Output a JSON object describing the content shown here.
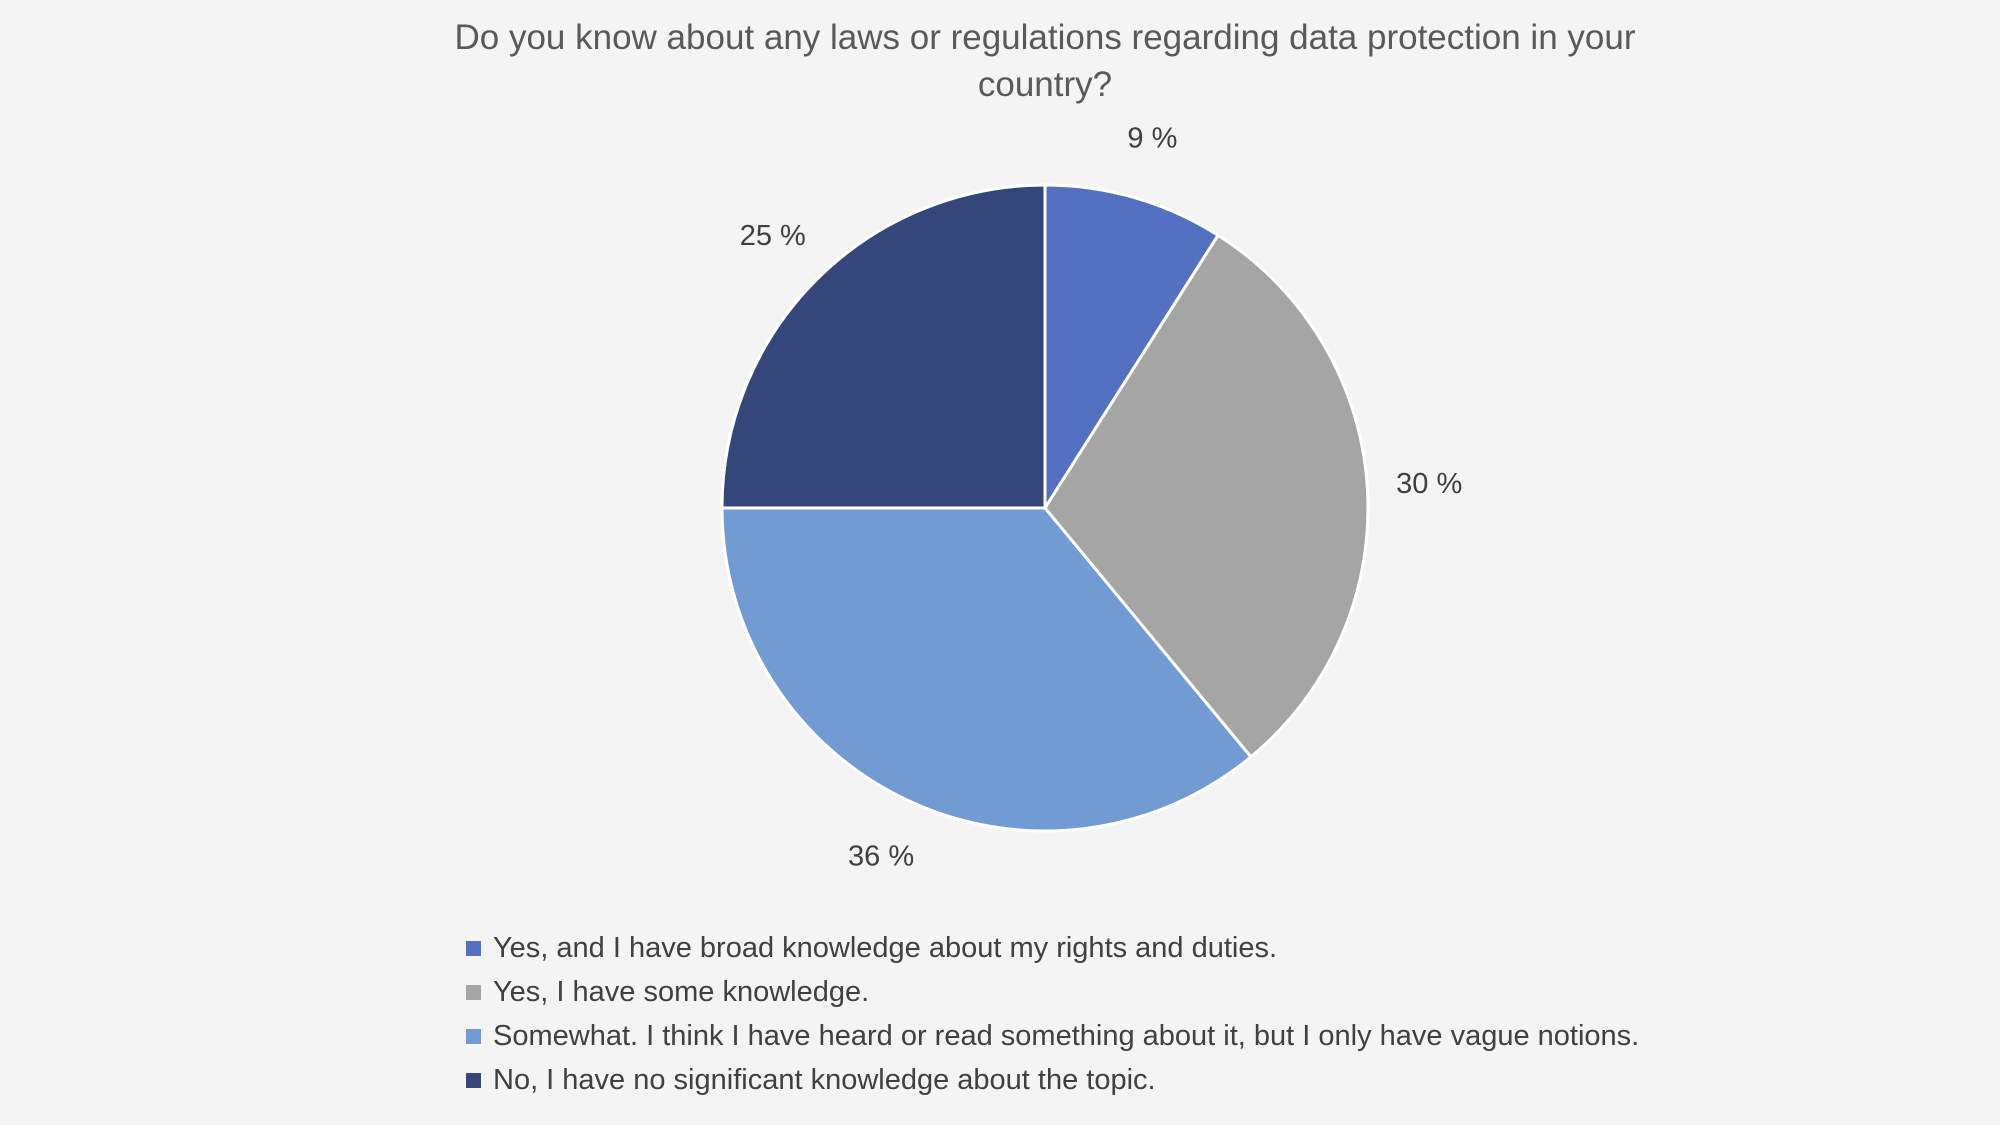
{
  "chart_data": {
    "type": "pie",
    "title": "Do you know about any laws or regulations regarding data protection in your country?",
    "categories": [
      "Yes, and I have broad knowledge about my rights and duties.",
      "Yes, I have some knowledge.",
      "Somewhat. I think I have heard or read something about it, but I only have vague notions.",
      "No, I have no significant knowledge about the topic."
    ],
    "values": [
      9,
      30,
      36,
      25
    ],
    "data_labels": [
      "9 %",
      "30 %",
      "36 %",
      "25 %"
    ],
    "colors": [
      "#5470c0",
      "#a5a5a5",
      "#729bd3",
      "#34467a"
    ],
    "legend_position": "bottom"
  }
}
